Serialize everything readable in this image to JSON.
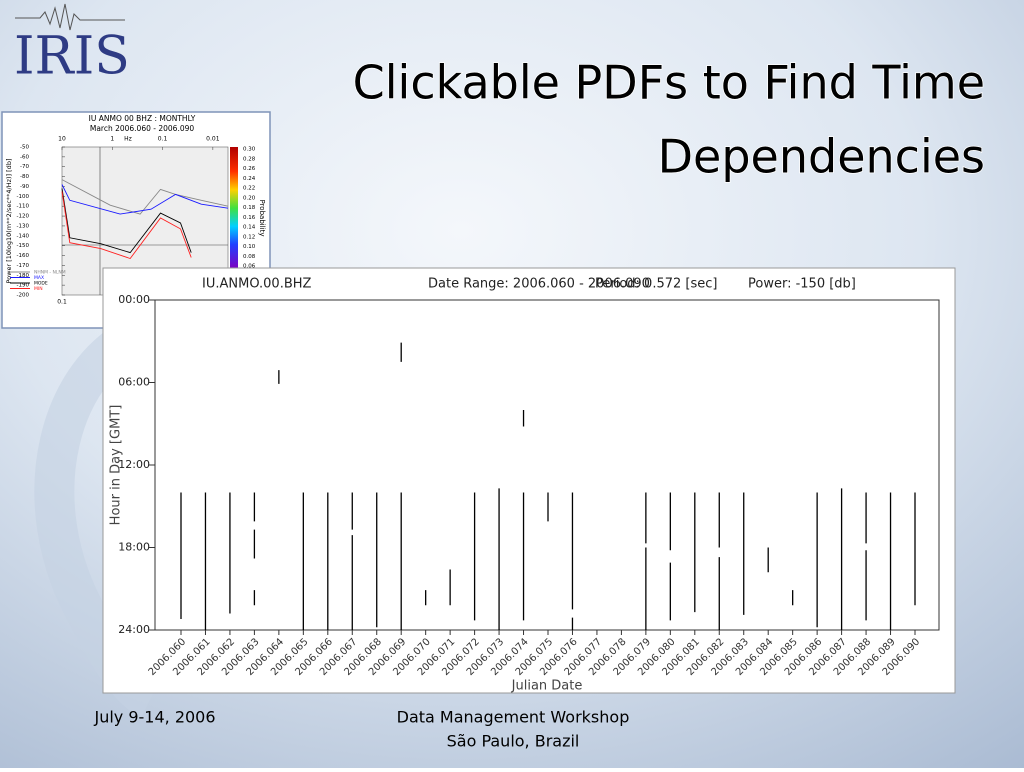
{
  "slide": {
    "logo": "IRIS",
    "title_lines": [
      "Clickable PDFs to Find Time",
      "Dependencies"
    ],
    "footer_date": "July 9-14, 2006",
    "footer_event": [
      "Data Management Workshop",
      "São Paulo, Brazil"
    ]
  },
  "chart_data": [
    {
      "type": "timeline",
      "header": [
        "IU.ANMO.00.BHZ",
        "Date Range: 2006.060 - 2006.090",
        "Period: 0.572 [sec]",
        "Power: -150 [db]"
      ],
      "y_label": "Hour in Day [GMT]",
      "x_label": "Julian Date",
      "ylim": [
        0,
        24
      ],
      "y_inverted": true,
      "yticks": [
        {
          "value": 0,
          "label": "00:00"
        },
        {
          "value": 6,
          "label": "06:00"
        },
        {
          "value": 12,
          "label": "12:00"
        },
        {
          "value": 18,
          "label": "18:00"
        },
        {
          "value": 24,
          "label": "24:00"
        }
      ],
      "color": "#000000",
      "categories": [
        "2006.060",
        "2006.061",
        "2006.062",
        "2006.063",
        "2006.064",
        "2006.065",
        "2006.066",
        "2006.067",
        "2006.068",
        "2006.069",
        "2006.070",
        "2006.071",
        "2006.072",
        "2006.073",
        "2006.074",
        "2006.075",
        "2006.076",
        "2006.077",
        "2006.078",
        "2006.079",
        "2006.080",
        "2006.081",
        "2006.082",
        "2006.083",
        "2006.084",
        "2006.085",
        "2006.086",
        "2006.087",
        "2006.088",
        "2006.089",
        "2006.090"
      ],
      "segments": [
        [
          [
            14,
            23.2
          ]
        ],
        [
          [
            14,
            24
          ]
        ],
        [
          [
            14,
            22.8
          ]
        ],
        [
          [
            14,
            16.1
          ],
          [
            16.7,
            18.8
          ],
          [
            21.1,
            22.2
          ]
        ],
        [
          [
            5.1,
            6.1
          ]
        ],
        [
          [
            14,
            24
          ]
        ],
        [
          [
            14,
            24
          ]
        ],
        [
          [
            14,
            16.7
          ],
          [
            17.1,
            24
          ]
        ],
        [
          [
            14,
            23.8
          ]
        ],
        [
          [
            3.1,
            4.5
          ],
          [
            14,
            24
          ]
        ],
        [
          [
            21.1,
            22.2
          ]
        ],
        [
          [
            19.6,
            22.2
          ]
        ],
        [
          [
            14,
            23.3
          ]
        ],
        [
          [
            13.7,
            24
          ]
        ],
        [
          [
            8.0,
            9.2
          ],
          [
            14,
            23.3
          ]
        ],
        [
          [
            14,
            16.1
          ]
        ],
        [
          [
            14,
            22.5
          ],
          [
            23.1,
            24
          ]
        ],
        [],
        [],
        [
          [
            14,
            17.7
          ],
          [
            18.0,
            24
          ]
        ],
        [
          [
            14,
            18.2
          ],
          [
            19.1,
            23.3
          ]
        ],
        [
          [
            14,
            22.7
          ]
        ],
        [
          [
            14,
            18.0
          ],
          [
            18.7,
            24
          ]
        ],
        [
          [
            14,
            22.9
          ]
        ],
        [
          [
            18.0,
            19.8
          ]
        ],
        [
          [
            21.1,
            22.2
          ]
        ],
        [
          [
            14,
            23.8
          ]
        ],
        [
          [
            13.7,
            24
          ]
        ],
        [
          [
            14,
            17.7
          ],
          [
            18.2,
            23.3
          ]
        ],
        [
          [
            14,
            24
          ]
        ],
        [
          [
            14,
            22.2
          ]
        ]
      ]
    },
    {
      "type": "line",
      "title": "IU ANMO 00 BHZ : MONTHLY",
      "subtitle": "March 2006.060 - 2006.090",
      "y_label": "Power [10log10(m**2/sec**4/Hz)] [db]",
      "x_top_label": "Hz",
      "xlim": [
        10,
        0.005
      ],
      "log_x": true,
      "xticks": [
        10,
        1,
        0.1,
        0.01
      ],
      "x_bottom_ticks": [
        0.1
      ],
      "ylim": [
        -50,
        -200
      ],
      "yticks": [
        -50,
        -60,
        -70,
        -80,
        -90,
        -100,
        -110,
        -120,
        -130,
        -140,
        -150,
        -160,
        -170,
        -180,
        -190,
        -200
      ],
      "colorbar_label": "Probability",
      "colorbar_ticks": [
        {
          "value": 0.3,
          "label": "0.30"
        },
        0.28,
        0.26,
        0.24,
        0.22,
        {
          "value": 0.2,
          "label": "0.20"
        },
        0.18,
        0.16,
        0.14,
        0.12,
        {
          "value": 0.1,
          "label": "0.10"
        },
        0.08,
        0.06
      ],
      "colorbar_lim": [
        0.3,
        0.06
      ],
      "series": [
        {
          "name": "NHNM - NLNM",
          "color": "#888888",
          "x": [
            10,
            1.1,
            0.28,
            0.11,
            0.055,
            0.017,
            0.005
          ],
          "values": [
            -83,
            -109,
            -118,
            -93,
            -98,
            -104,
            -110
          ]
        },
        {
          "name": "MAX",
          "color": "#1a1aff",
          "x": [
            10,
            7,
            0.7,
            0.17,
            0.055,
            0.017,
            0.005
          ],
          "values": [
            -88,
            -104,
            -118,
            -113,
            -98,
            -108,
            -112
          ]
        },
        {
          "name": "MODE",
          "color": "#000000",
          "x": [
            10,
            7,
            1.7,
            0.44,
            0.11,
            0.044,
            0.027
          ],
          "values": [
            -92,
            -142,
            -148,
            -157,
            -117,
            -127,
            -157
          ]
        },
        {
          "name": "MIN",
          "color": "#ff2020",
          "x": [
            10,
            7,
            1.7,
            0.44,
            0.11,
            0.044,
            0.027
          ],
          "values": [
            -95,
            -147,
            -153,
            -163,
            -122,
            -133,
            -162
          ]
        }
      ]
    }
  ]
}
